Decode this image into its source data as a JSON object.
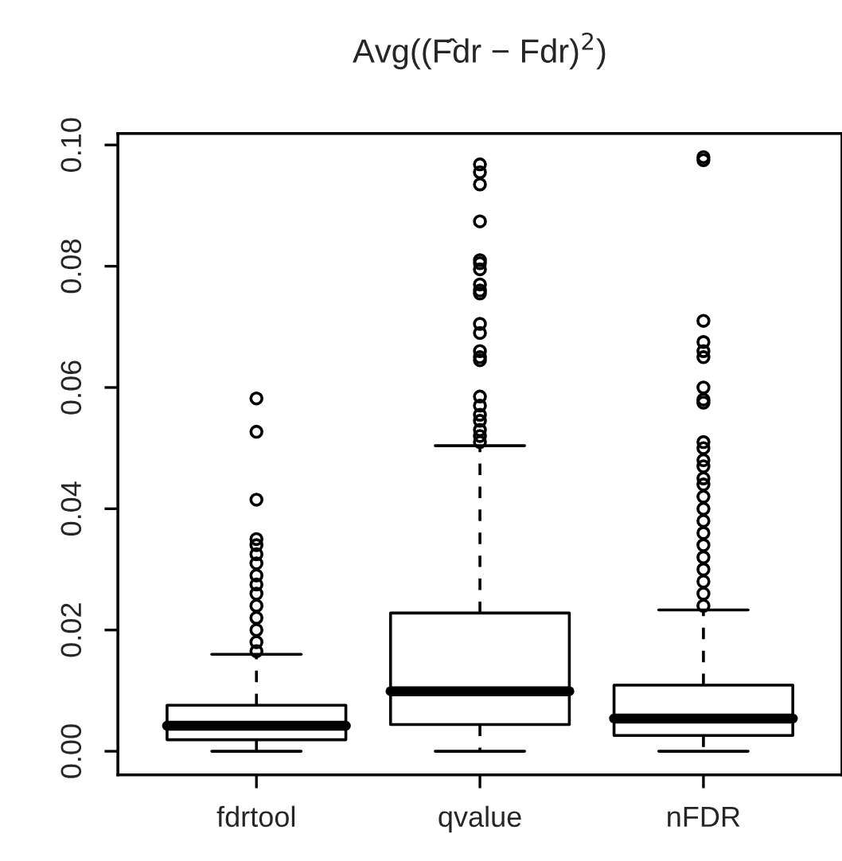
{
  "chart_data": {
    "type": "box",
    "title": "Avg((F̂dr − Fdr)$^{2}$)",
    "categories": [
      "fdrtool",
      "qvalue",
      "nFDR"
    ],
    "boxes": [
      {
        "low": 0,
        "q1": 0.0019,
        "median": 0.0042,
        "q3": 0.0076,
        "high": 0.016,
        "outliers": [
          0.0165,
          0.018,
          0.02,
          0.022,
          0.024,
          0.026,
          0.0275,
          0.029,
          0.031,
          0.0325,
          0.034,
          0.035,
          0.0415,
          0.0527,
          0.0582
        ]
      },
      {
        "low": 0,
        "q1": 0.0044,
        "median": 0.0099,
        "q3": 0.0228,
        "high": 0.0504,
        "outliers": [
          0.051,
          0.052,
          0.053,
          0.0545,
          0.0555,
          0.057,
          0.0585,
          0.0645,
          0.065,
          0.066,
          0.069,
          0.0705,
          0.0755,
          0.076,
          0.077,
          0.0795,
          0.0805,
          0.081,
          0.0874,
          0.0935,
          0.0955,
          0.0968
        ]
      },
      {
        "low": 0,
        "q1": 0.0026,
        "median": 0.0054,
        "q3": 0.0109,
        "high": 0.0233,
        "outliers": [
          0.024,
          0.026,
          0.028,
          0.03,
          0.032,
          0.034,
          0.036,
          0.038,
          0.04,
          0.042,
          0.044,
          0.045,
          0.047,
          0.048,
          0.05,
          0.051,
          0.0575,
          0.058,
          0.06,
          0.065,
          0.066,
          0.0675,
          0.071,
          0.0975,
          0.098
        ]
      }
    ],
    "ylim": [
      -0.0039,
      0.1019
    ],
    "yticks": [
      {
        "value": 0,
        "label": "0.00"
      },
      {
        "value": 0.02,
        "label": "0.02"
      },
      {
        "value": 0.04,
        "label": "0.04"
      },
      {
        "value": 0.06,
        "label": "0.06"
      },
      {
        "value": 0.08,
        "label": "0.08"
      },
      {
        "value": 0.1,
        "label": "0.10"
      }
    ],
    "grid": false,
    "legend": false
  }
}
